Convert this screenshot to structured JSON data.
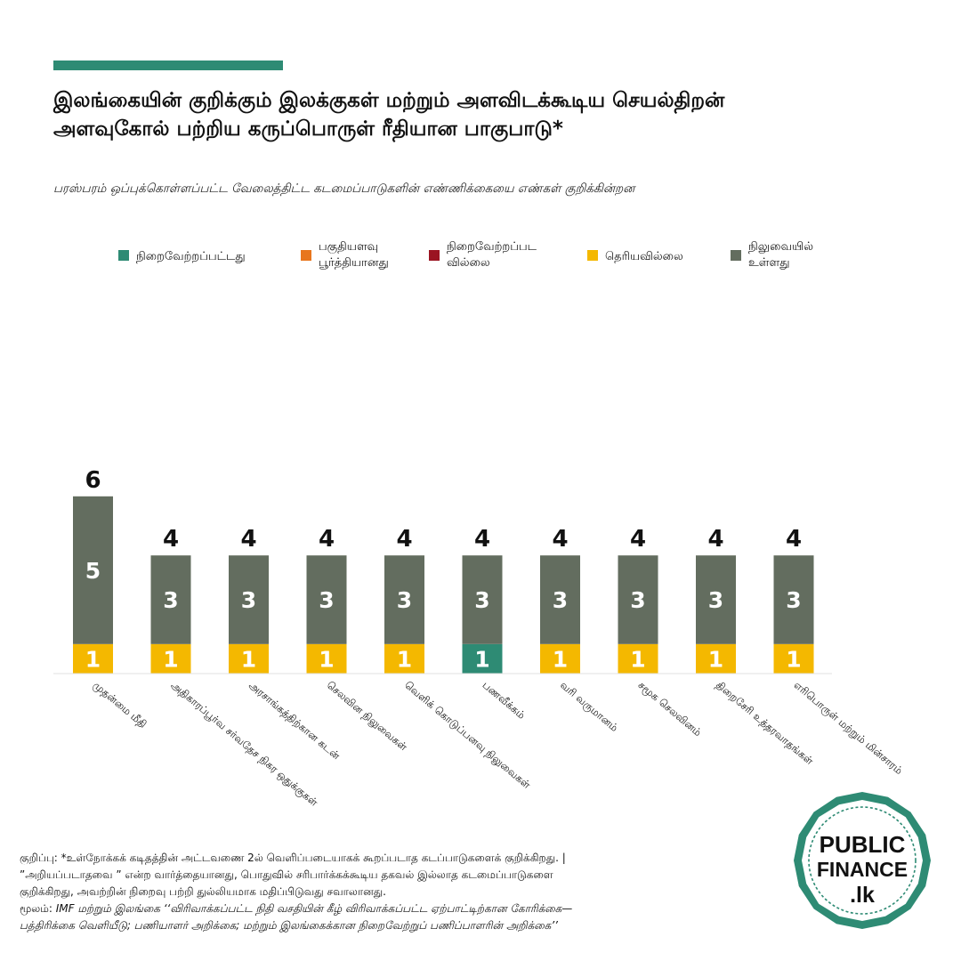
{
  "header": {
    "title_line1": "இலங்கையின் குறிக்கும் இலக்குகள் மற்றும் அளவிடக்கூடிய செயல்திறன்",
    "title_line2": "அளவுகோல் பற்றிய கருப்பொருள் ரீதியான பாகுபாடு*",
    "subtitle": "பரஸ்பரம் ஒப்புக்கொள்ளப்பட்ட வேலைத்திட்ட கடமைப்பாடுகளின் எண்ணிக்கையை எண்கள் குறிக்கின்றன"
  },
  "colors": {
    "accent": "#2e8b74",
    "completed": "#2e8b74",
    "partial": "#e8761e",
    "not_completed": "#9b1422",
    "unknown": "#f4b800",
    "pending": "#636d5f"
  },
  "chart_data": {
    "type": "bar",
    "stacked": true,
    "title": "",
    "xlabel": "",
    "ylabel": "",
    "legend_position": "top",
    "grid": false,
    "categories": [
      "முதன்மை மீதி",
      "அதிகாரப்பூர்வ சர்வதேச நிகர ஒதுக்குகள்",
      "அரசாங்கத்திற்கான கடன்",
      "செலவின நிலுவைகள்",
      "வெளிக் கொடுப்பனவு நிலுவைகள்",
      "பணவீக்கம்",
      "வரி வருமானம்",
      "சமூக செலவினம்",
      "திறைசேரி உத்தரவாதங்கள்",
      "எரிபொருள் மற்றும் மின்சாரம்"
    ],
    "series": [
      {
        "name": "நிறைவேற்றப்பட்டது",
        "color": "#2e8b74",
        "values": [
          0,
          0,
          0,
          0,
          0,
          1,
          0,
          0,
          0,
          0
        ]
      },
      {
        "name": "பகுதியளவு பூர்த்தியானது",
        "color": "#e8761e",
        "values": [
          0,
          0,
          0,
          0,
          0,
          0,
          0,
          0,
          0,
          0
        ]
      },
      {
        "name": "நிறைவேற்றப்பட வில்லை",
        "color": "#9b1422",
        "values": [
          0,
          0,
          0,
          0,
          0,
          0,
          0,
          0,
          0,
          0
        ]
      },
      {
        "name": "தெரியவில்லை",
        "color": "#f4b800",
        "values": [
          1,
          1,
          1,
          1,
          1,
          0,
          1,
          1,
          1,
          1
        ]
      },
      {
        "name": "நிலுவையில் உள்ளது",
        "color": "#636d5f",
        "values": [
          5,
          3,
          3,
          3,
          3,
          3,
          3,
          3,
          3,
          3
        ]
      }
    ],
    "legend_lines": [
      [
        "நிறைவேற்றப்பட்டது"
      ],
      [
        "பகுதியளவு",
        "பூர்த்தியானது"
      ],
      [
        "நிறைவேற்றப்பட",
        "வில்லை"
      ],
      [
        "தெரியவில்லை"
      ],
      [
        "நிலுவையில்",
        "உள்ளது"
      ]
    ],
    "totals": [
      6,
      4,
      4,
      4,
      4,
      4,
      4,
      4,
      4,
      4
    ],
    "ylim": [
      0,
      6
    ]
  },
  "notes": {
    "line1": "குறிப்பு: *உள்நோக்கக் கடிதத்தின் அட்டவணை 2ல் வெளிப்படையாகக் கூறப்படாத கடப்பாடுகளைக் குறிக்கிறது. |",
    "line2": "”அறியப்படாதவை ” என்ற வார்த்தையானது, பொதுவில் சரிபார்க்கக்கூடிய தகவல் இல்லாத கடமைப்பாடுகளை",
    "line3": "குறிக்கிறது, அவற்றின் நிறைவு பற்றி துல்லியமாக மதிப்பிடுவது சவாலானது.",
    "line4_prefix": "மூலம்: ",
    "line4": "IMF மற்றும் இலங்கை ‘‘விரிவாக்கப்பட்ட நிதி வசதியின் கீழ் விரிவாக்கப்பட்ட ஏற்பாட்டிற்கான கோரிக்கை—",
    "line5": "பத்திரிக்கை வெளியீடு; பணியாளர் அறிக்கை; மற்றும் இலங்கைக்கான நிறைவேற்றுப் பணிப்பாளரின் அறிக்கை’’"
  },
  "logo": {
    "line1": "PUBLIC",
    "line2": "FINANCE",
    "line3": ".lk"
  }
}
